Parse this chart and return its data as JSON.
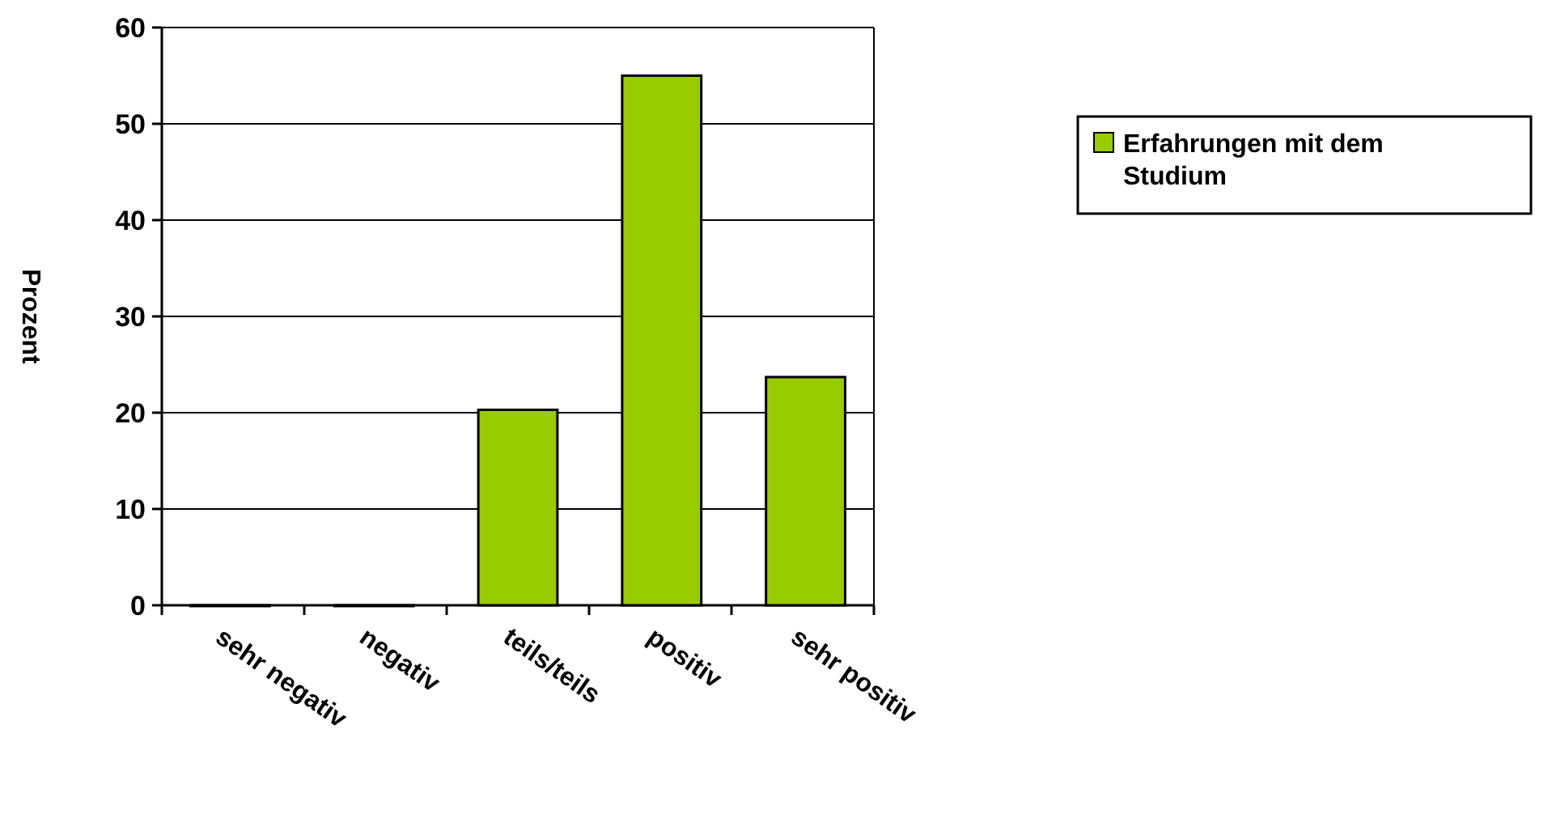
{
  "chart_data": {
    "type": "bar",
    "ylabel": "Prozent",
    "categories": [
      "sehr negativ",
      "negativ",
      "teils/teils",
      "positiv",
      "sehr positiv"
    ],
    "series": [
      {
        "name": "Erfahrungen mit dem Studium",
        "color": "#99cc00",
        "values": [
          0,
          0,
          20.3,
          55,
          23.7
        ]
      }
    ],
    "ylim": [
      0,
      60
    ],
    "yticks": [
      0,
      10,
      20,
      30,
      40,
      50,
      60
    ],
    "grid": "y",
    "legend": "right"
  }
}
